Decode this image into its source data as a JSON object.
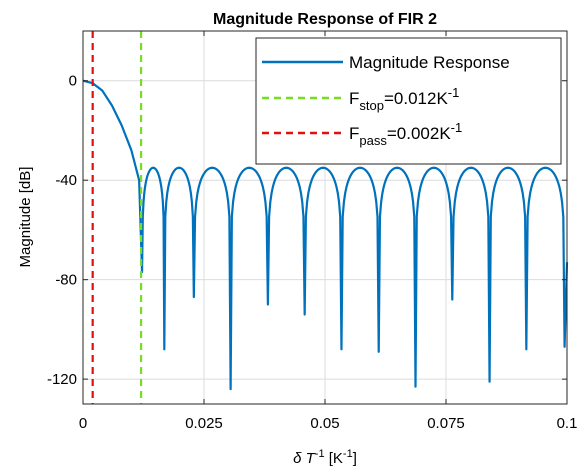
{
  "chart_data": {
    "type": "line",
    "title": "Magnitude Response of FIR 2",
    "xlabel": {
      "prefix": "δ T",
      "sup": "-1",
      "suffix": " [K",
      "sup2": "-1",
      "suffix2": "]"
    },
    "ylabel": "Magnitude [dB]",
    "xlim": [
      0,
      0.1
    ],
    "ylim": [
      -130,
      20
    ],
    "xticks": [
      0,
      0.025,
      0.05,
      0.075,
      0.1
    ],
    "xtick_labels": [
      "0",
      "0.025",
      "0.05",
      "0.075",
      "0.1"
    ],
    "yticks": [
      0,
      -40,
      -80,
      -120
    ],
    "ytick_labels": [
      "0",
      "-40",
      "-80",
      "-120"
    ],
    "grid": true,
    "legend_position": "top-right",
    "series": [
      {
        "name": "Magnitude Response",
        "color": "#0072BD",
        "style": "solid",
        "main_lobe": {
          "x": [
            0,
            0.002,
            0.004,
            0.006,
            0.008,
            0.01,
            0.0116,
            0.0122
          ],
          "y": [
            0,
            -1,
            -4,
            -10,
            -18,
            -28,
            -40,
            -77
          ]
        },
        "sidelobe_peak_db": -35,
        "nulls": [
          {
            "x": 0.0122,
            "y": -77
          },
          {
            "x": 0.0168,
            "y": -108
          },
          {
            "x": 0.0229,
            "y": -87
          },
          {
            "x": 0.0305,
            "y": -124
          },
          {
            "x": 0.0382,
            "y": -90
          },
          {
            "x": 0.0458,
            "y": -94
          },
          {
            "x": 0.0534,
            "y": -108
          },
          {
            "x": 0.0611,
            "y": -109
          },
          {
            "x": 0.0687,
            "y": -123
          },
          {
            "x": 0.0763,
            "y": -88
          },
          {
            "x": 0.084,
            "y": -121
          },
          {
            "x": 0.0916,
            "y": -108
          },
          {
            "x": 0.0995,
            "y": -107
          }
        ]
      },
      {
        "name": "F_stop=0.012K^-1",
        "color": "#77DD22",
        "style": "dashed",
        "x": 0.012
      },
      {
        "name": "F_pass=0.002K^-1",
        "color": "#E01010",
        "style": "dashed",
        "x": 0.002
      }
    ],
    "legend": [
      {
        "label": "Magnitude Response",
        "sub": "",
        "value": "",
        "sup": ""
      },
      {
        "label": "F",
        "sub": "stop",
        "value": "=0.012K",
        "sup": "-1"
      },
      {
        "label": "F",
        "sub": "pass",
        "value": "=0.002K",
        "sup": "-1"
      }
    ]
  }
}
